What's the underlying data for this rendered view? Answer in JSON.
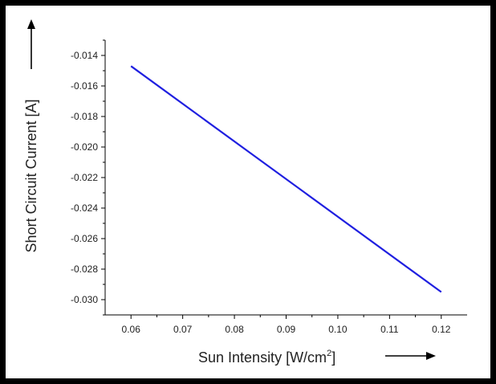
{
  "chart_data": {
    "type": "line",
    "title": "",
    "xlabel": {
      "pre": "Sun Intensity [W/cm",
      "sup": "2",
      "post": "]"
    },
    "ylabel": "Short Circuit Current [A]",
    "xlim": [
      0.055,
      0.125
    ],
    "ylim": [
      -0.031,
      -0.013
    ],
    "xticks": [
      0.06,
      0.07,
      0.08,
      0.09,
      0.1,
      0.11,
      0.12
    ],
    "xtick_labels": [
      "0.06",
      "0.07",
      "0.08",
      "0.09",
      "0.10",
      "0.11",
      "0.12"
    ],
    "yticks": [
      -0.014,
      -0.016,
      -0.018,
      -0.02,
      -0.022,
      -0.024,
      -0.026,
      -0.028,
      -0.03
    ],
    "ytick_labels": [
      "-0.014",
      "-0.016",
      "-0.018",
      "-0.020",
      "-0.022",
      "-0.024",
      "-0.026",
      "-0.028",
      "-0.030"
    ],
    "grid": false,
    "series": [
      {
        "color": "#1f1fe0",
        "x": [
          0.06,
          0.12
        ],
        "y": [
          -0.0147,
          -0.0295
        ]
      }
    ]
  }
}
